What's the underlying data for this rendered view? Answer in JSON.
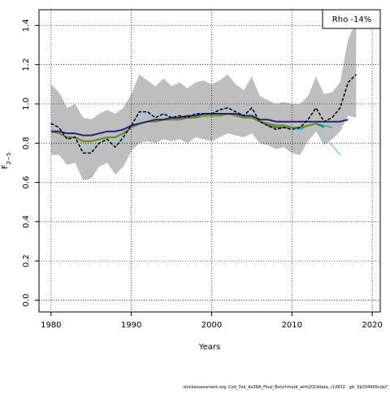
{
  "chart_data": {
    "type": "line",
    "xlabel": "Years",
    "ylabel_main": "F",
    "ylabel_sub": "2−5",
    "xlim": [
      1978.5,
      2021
    ],
    "ylim": [
      -0.06,
      1.48
    ],
    "x_ticks": [
      1980,
      1990,
      2000,
      2010,
      2020
    ],
    "y_ticks": [
      0.0,
      0.2,
      0.4,
      0.6,
      0.8,
      1.0,
      1.2,
      1.4
    ],
    "x_tick_labels": [
      "1980",
      "1990",
      "2000",
      "2010",
      "2020"
    ],
    "y_tick_labels": [
      "0.0",
      "0.2",
      "0.4",
      "0.6",
      "0.8",
      "1.0",
      "1.2",
      "1.4"
    ],
    "grid": "dotted",
    "legend": {
      "placement": "top-right",
      "text": "Rho -14%"
    },
    "footer": "stockassessment.org,  Cod_7ek_4a3NA_Final_Benchmark_with2019data,  r12832 ,  git: 5b334405cda7",
    "band": {
      "color": "#bebebe",
      "x": [
        1980,
        1981,
        1982,
        1983,
        1984,
        1985,
        1986,
        1987,
        1988,
        1989,
        1990,
        1991,
        1992,
        1993,
        1994,
        1995,
        1996,
        1997,
        1998,
        1999,
        2000,
        2001,
        2002,
        2003,
        2004,
        2005,
        2006,
        2007,
        2008,
        2009,
        2010,
        2011,
        2012,
        2013,
        2014,
        2015,
        2016,
        2017,
        2018
      ],
      "upper": [
        1.1,
        1.06,
        0.98,
        1.0,
        0.93,
        0.92,
        0.95,
        0.97,
        0.95,
        0.98,
        1.05,
        1.15,
        1.12,
        1.09,
        1.13,
        1.09,
        1.11,
        1.08,
        1.11,
        1.12,
        1.1,
        1.12,
        1.15,
        1.1,
        1.07,
        1.14,
        1.04,
        1.02,
        1.0,
        1.01,
        1.0,
        1.0,
        1.04,
        1.14,
        1.05,
        1.06,
        1.11,
        1.33,
        1.42
      ],
      "lower": [
        0.74,
        0.74,
        0.69,
        0.7,
        0.61,
        0.62,
        0.68,
        0.7,
        0.64,
        0.68,
        0.76,
        0.8,
        0.81,
        0.8,
        0.82,
        0.81,
        0.82,
        0.8,
        0.83,
        0.82,
        0.81,
        0.83,
        0.85,
        0.84,
        0.83,
        0.85,
        0.8,
        0.79,
        0.77,
        0.78,
        0.75,
        0.74,
        0.81,
        0.86,
        0.79,
        0.82,
        0.86,
        0.94,
        0.93
      ]
    },
    "series": [
      {
        "color": "#87ceeb",
        "width": 1.6,
        "dash": "",
        "x": [
          1980,
          1981,
          1982,
          1983,
          1984,
          1985,
          1986,
          1987,
          1988,
          1989,
          1990,
          1991,
          1992,
          1993,
          1994,
          1995,
          1996,
          1997,
          1998,
          1999,
          2000,
          2001,
          2002,
          2003,
          2004,
          2005,
          2006,
          2007,
          2008,
          2009,
          2010,
          2011,
          2012,
          2013,
          2014,
          2015,
          2016
        ],
        "y": [
          0.9,
          0.88,
          0.82,
          0.83,
          0.76,
          0.76,
          0.8,
          0.82,
          0.79,
          0.84,
          0.89,
          0.95,
          0.95,
          0.93,
          0.96,
          0.93,
          0.94,
          0.93,
          0.95,
          0.96,
          0.95,
          0.96,
          0.97,
          0.96,
          0.94,
          0.97,
          0.91,
          0.89,
          0.88,
          0.88,
          0.87,
          0.86,
          0.89,
          0.91,
          0.83,
          0.79,
          0.74
        ]
      },
      {
        "color": "#20b2aa",
        "width": 1.6,
        "dash": "",
        "x": [
          2006,
          2007,
          2008,
          2009,
          2010,
          2011,
          2012,
          2013,
          2014,
          2015
        ],
        "y": [
          0.91,
          0.9,
          0.89,
          0.89,
          0.88,
          0.87,
          0.89,
          0.9,
          0.89,
          0.88
        ]
      },
      {
        "color": "#1e8449",
        "width": 1.8,
        "dash": "",
        "x": [
          2005,
          2006,
          2007,
          2008,
          2009,
          2010,
          2011,
          2012,
          2013,
          2014
        ],
        "y": [
          0.94,
          0.91,
          0.89,
          0.88,
          0.88,
          0.88,
          0.88,
          0.89,
          0.9,
          0.88
        ]
      },
      {
        "color": "#6b8e23",
        "width": 2.2,
        "dash": "",
        "x": [
          1980,
          1981,
          1982,
          1983,
          1984,
          1985,
          1986,
          1987,
          1988,
          1989,
          1990,
          1991,
          1992,
          1993,
          1994,
          1995,
          1996,
          1997,
          1998,
          1999,
          2000,
          2001,
          2002,
          2003,
          2004,
          2005,
          2006,
          2007,
          2008,
          2009,
          2010,
          2011,
          2012,
          2013
        ],
        "y": [
          0.86,
          0.85,
          0.83,
          0.83,
          0.81,
          0.81,
          0.82,
          0.83,
          0.83,
          0.85,
          0.88,
          0.9,
          0.91,
          0.91,
          0.92,
          0.92,
          0.92,
          0.93,
          0.93,
          0.94,
          0.94,
          0.94,
          0.95,
          0.94,
          0.93,
          0.93,
          0.91,
          0.9,
          0.89,
          0.89,
          0.88,
          0.88,
          0.89,
          0.9
        ]
      },
      {
        "color": "#2b1f7a",
        "width": 2.0,
        "dash": "",
        "x": [
          1980,
          1981,
          1982,
          1983,
          1984,
          1985,
          1986,
          1987,
          1988,
          1989,
          1990,
          1991,
          1992,
          1993,
          1994,
          1995,
          1996,
          1997,
          1998,
          1999,
          2000,
          2001,
          2002,
          2003,
          2004,
          2005,
          2006,
          2007,
          2008,
          2009,
          2010,
          2011,
          2012,
          2013,
          2014,
          2015,
          2016,
          2017
        ],
        "y": [
          0.86,
          0.86,
          0.85,
          0.85,
          0.84,
          0.84,
          0.85,
          0.86,
          0.86,
          0.87,
          0.89,
          0.9,
          0.91,
          0.92,
          0.92,
          0.93,
          0.93,
          0.94,
          0.94,
          0.95,
          0.95,
          0.95,
          0.95,
          0.95,
          0.94,
          0.94,
          0.92,
          0.92,
          0.91,
          0.91,
          0.91,
          0.91,
          0.91,
          0.91,
          0.91,
          0.91,
          0.91,
          0.92
        ]
      },
      {
        "color": "#000000",
        "width": 1.5,
        "dash": "4 2",
        "x": [
          1980,
          1981,
          1982,
          1983,
          1984,
          1985,
          1986,
          1987,
          1988,
          1989,
          1990,
          1991,
          1992,
          1993,
          1994,
          1995,
          1996,
          1997,
          1998,
          1999,
          2000,
          2001,
          2002,
          2003,
          2004,
          2005,
          2006,
          2007,
          2008,
          2009,
          2010,
          2011,
          2012,
          2013,
          2014,
          2015,
          2016,
          2017,
          2018
        ],
        "y": [
          0.9,
          0.88,
          0.82,
          0.83,
          0.75,
          0.75,
          0.8,
          0.82,
          0.78,
          0.83,
          0.89,
          0.96,
          0.96,
          0.93,
          0.95,
          0.93,
          0.94,
          0.93,
          0.95,
          0.95,
          0.95,
          0.97,
          0.98,
          0.96,
          0.94,
          0.98,
          0.91,
          0.89,
          0.87,
          0.88,
          0.87,
          0.88,
          0.92,
          0.98,
          0.91,
          0.93,
          0.98,
          1.11,
          1.15
        ]
      }
    ]
  }
}
